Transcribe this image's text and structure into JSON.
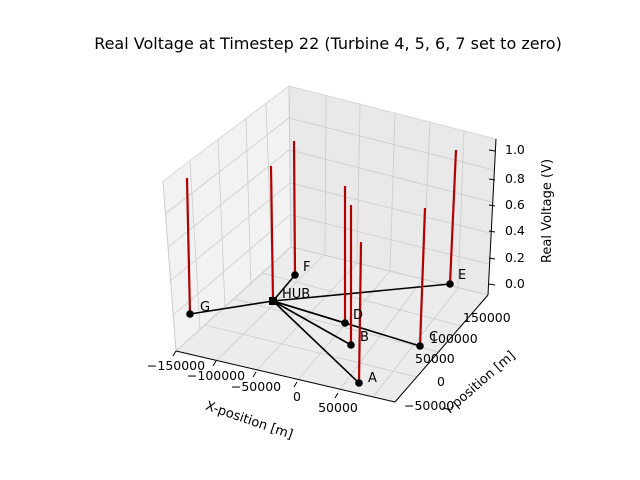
{
  "chart_data": {
    "type": "3d-network-stem",
    "title": "Real Voltage at Timestep 22 (Turbine 4, 5, 6, 7 set to zero)",
    "xlabel": "X-position [m]",
    "ylabel": "Y-position [m]",
    "zlabel": "Real Voltage (V)",
    "x_ticks": [
      "−150000",
      "−100000",
      "−50000",
      "0",
      "50000"
    ],
    "y_ticks": [
      "−50000",
      "0",
      "50000",
      "100000",
      "150000"
    ],
    "z_ticks": [
      "0.0",
      "0.2",
      "0.4",
      "0.6",
      "0.8",
      "1.0"
    ],
    "zlim": [
      0,
      1
    ],
    "grid": true,
    "colors": {
      "stem": "#b30000",
      "edge": "#000000",
      "node": "#000000",
      "pane": "#f2f2f2",
      "grid": "#cccccc"
    },
    "nodes": [
      {
        "name": "HUB",
        "hub": true
      },
      {
        "name": "A"
      },
      {
        "name": "B"
      },
      {
        "name": "C"
      },
      {
        "name": "D"
      },
      {
        "name": "E"
      },
      {
        "name": "F"
      },
      {
        "name": "G"
      }
    ],
    "edges": [
      [
        "HUB",
        "A"
      ],
      [
        "HUB",
        "B"
      ],
      [
        "HUB",
        "C"
      ],
      [
        "HUB",
        "D"
      ],
      [
        "HUB",
        "E"
      ],
      [
        "HUB",
        "F"
      ],
      [
        "HUB",
        "G"
      ]
    ],
    "stems_note": "",
    "stems": [
      {
        "node": "G",
        "value": 1.0
      },
      {
        "node": "HUB",
        "value": 1.0
      },
      {
        "node": "F",
        "value": 1.0
      },
      {
        "node": "D",
        "value": 1.0
      },
      {
        "node": "B",
        "value": 1.0
      },
      {
        "node": "A",
        "value": 1.0
      },
      {
        "node": "C",
        "value": 1.0
      },
      {
        "node": "E",
        "value": 1.0
      }
    ]
  }
}
